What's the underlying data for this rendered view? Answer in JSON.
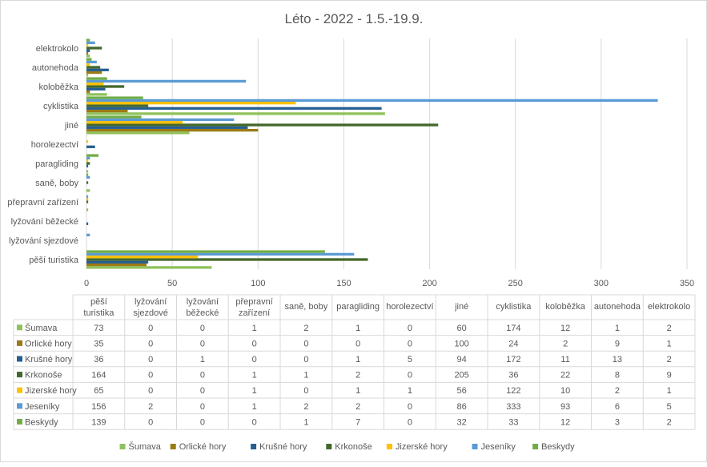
{
  "chart_data": {
    "type": "bar",
    "orientation": "horizontal",
    "title": "Léto - 2022 - 1.5.-19.9.",
    "xlabel": "",
    "ylabel": "",
    "xlim": [
      0,
      350
    ],
    "x_ticks": [
      0,
      50,
      100,
      150,
      200,
      250,
      300,
      350
    ],
    "grid": true,
    "legend_position": "bottom",
    "categories": [
      "pěší turistika",
      "lyžování sjezdové",
      "lyžování běžecké",
      "přepravní zařízení",
      "saně, boby",
      "paragliding",
      "horolezectví",
      "jiné",
      "cyklistika",
      "koloběžka",
      "autonehoda",
      "elektrokolo"
    ],
    "axis_categories": [
      "pěší turistika",
      "lyžování sjezdové",
      "lyžování běžecké",
      "přepravní zařízení",
      "saně, boby",
      "paragliding",
      "horolezectví",
      "jiné",
      "cyklistika",
      "koloběžka",
      "autonehoda",
      "elektrokolo"
    ],
    "table_headers": [
      "pěší turistika",
      "lyžování sjezdové",
      "lyžování běžecké",
      "přepravní zařízení",
      "saně, boby",
      "paragliding",
      "horolezectví",
      "jiné",
      "cyklistika",
      "koloběžka",
      "autonehoda",
      "elektrokolo"
    ],
    "series": [
      {
        "name": "Šumava",
        "color": "#8fc25b",
        "values": [
          73,
          0,
          0,
          1,
          2,
          1,
          0,
          60,
          174,
          12,
          1,
          2
        ]
      },
      {
        "name": "Orlické hory",
        "color": "#9c7a14",
        "values": [
          35,
          0,
          0,
          0,
          0,
          0,
          0,
          100,
          24,
          2,
          9,
          1
        ]
      },
      {
        "name": "Krušné hory",
        "color": "#255e91",
        "values": [
          36,
          0,
          1,
          0,
          0,
          1,
          5,
          94,
          172,
          11,
          13,
          2
        ]
      },
      {
        "name": "Krkonoše",
        "color": "#43682b",
        "values": [
          164,
          0,
          0,
          1,
          1,
          2,
          0,
          205,
          36,
          22,
          8,
          9
        ]
      },
      {
        "name": "Jizerské hory",
        "color": "#ffc000",
        "values": [
          65,
          0,
          0,
          1,
          0,
          1,
          1,
          56,
          122,
          10,
          2,
          1
        ]
      },
      {
        "name": "Jeseníky",
        "color": "#5b9bd5",
        "values": [
          156,
          2,
          0,
          1,
          2,
          2,
          0,
          86,
          333,
          93,
          6,
          5
        ]
      },
      {
        "name": "Beskydy",
        "color": "#70ad47",
        "values": [
          139,
          0,
          0,
          0,
          1,
          7,
          0,
          32,
          33,
          12,
          3,
          2
        ]
      }
    ]
  }
}
